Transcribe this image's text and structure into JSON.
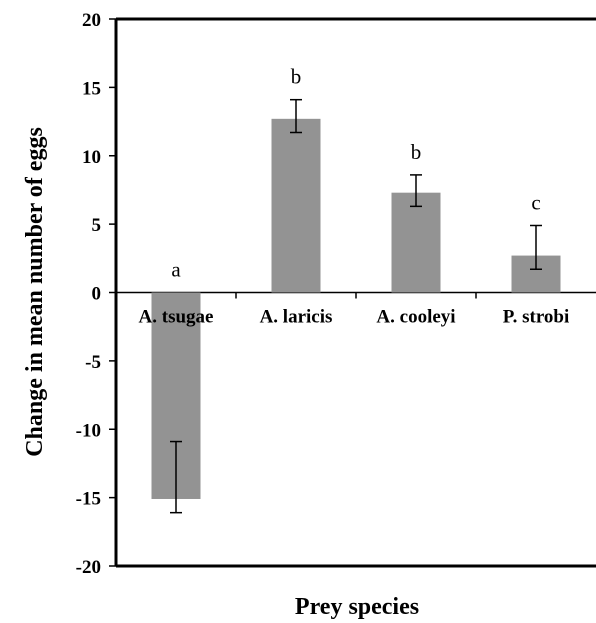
{
  "chart_data": {
    "type": "bar",
    "xlabel": "Prey species",
    "ylabel": "Change in mean number of eggs",
    "ylim": [
      -20,
      20
    ],
    "yticks": [
      20,
      15,
      10,
      5,
      0,
      -5,
      -10,
      -15,
      -20
    ],
    "ytick_labels": [
      "20",
      "15",
      "10",
      "5",
      "0",
      "-5",
      "-10",
      "-15",
      "-20"
    ],
    "categories": [
      "A. tsugae",
      "A. laricis",
      "A. cooleyi",
      "P. strobi"
    ],
    "values": [
      -15.1,
      12.7,
      7.3,
      2.7
    ],
    "error_low": [
      -16.1,
      11.7,
      6.3,
      1.7
    ],
    "error_high": [
      -10.9,
      14.1,
      8.6,
      4.9
    ],
    "significance_letters": [
      "a",
      "b",
      "b",
      "c"
    ],
    "bar_color": "#939393",
    "grid": false,
    "legend": "none"
  }
}
